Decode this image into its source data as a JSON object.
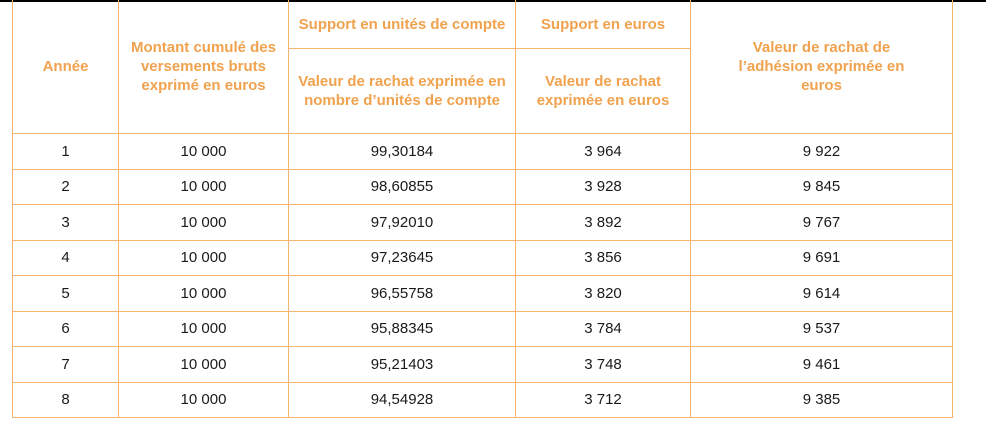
{
  "colors": {
    "accent": "#f0a24e",
    "border": "#f6b46e"
  },
  "headers": {
    "year": "Année",
    "cumulative": "Montant cumulé des versements bruts exprimé en euros",
    "uc_group": "Support en unités de compte",
    "uc_value": "Valeur de rachat exprimée en nombre d’unités de compte",
    "euro_group": "Support en euros",
    "euro_value": "Valeur de rachat exprimée en euros",
    "total": "Valeur de rachat de l’adhésion exprimée en euros"
  },
  "rows": [
    {
      "year": "1",
      "cumulative": "10 000",
      "uc": "99,30184",
      "euro": "3 964",
      "total": "9 922"
    },
    {
      "year": "2",
      "cumulative": "10 000",
      "uc": "98,60855",
      "euro": "3 928",
      "total": "9 845"
    },
    {
      "year": "3",
      "cumulative": "10 000",
      "uc": "97,92010",
      "euro": "3 892",
      "total": "9 767"
    },
    {
      "year": "4",
      "cumulative": "10 000",
      "uc": "97,23645",
      "euro": "3 856",
      "total": "9 691"
    },
    {
      "year": "5",
      "cumulative": "10 000",
      "uc": "96,55758",
      "euro": "3 820",
      "total": "9 614"
    },
    {
      "year": "6",
      "cumulative": "10 000",
      "uc": "95,88345",
      "euro": "3 784",
      "total": "9 537"
    },
    {
      "year": "7",
      "cumulative": "10 000",
      "uc": "95,21403",
      "euro": "3 748",
      "total": "9 461"
    },
    {
      "year": "8",
      "cumulative": "10 000",
      "uc": "94,54928",
      "euro": "3 712",
      "total": "9 385"
    }
  ]
}
